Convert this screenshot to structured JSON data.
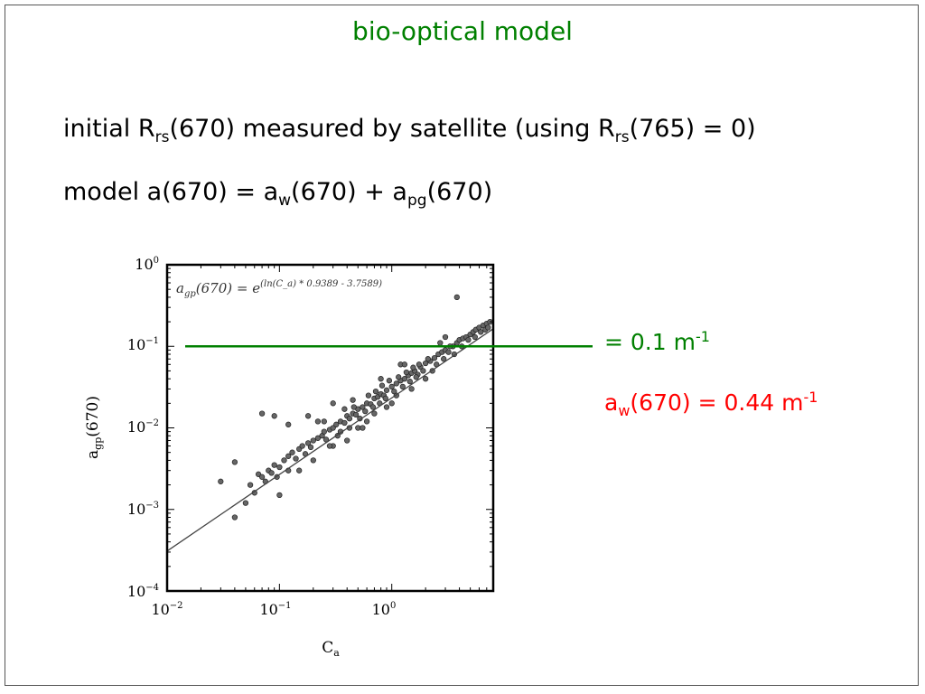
{
  "slide": {
    "title": "bio-optical model",
    "line1": {
      "a": "initial R",
      "sub1": "rs",
      "b": "(670) measured by satellite (using R",
      "sub2": "rs",
      "c": "(765) = 0)"
    },
    "line2": {
      "a": "model a(670) = a",
      "sub1": "w",
      "b": "(670) + a",
      "sub2": "pg",
      "c": "(670)"
    },
    "threshold_label": {
      "text": "= 0.1 m",
      "sup": "-1"
    },
    "aw_label": {
      "a": "a",
      "sub": "w",
      "b": "(670) = 0.44 m",
      "sup": "-1"
    }
  },
  "colors": {
    "title": "#008000",
    "threshold_line": "#008000",
    "aw_label": "#ff0000",
    "points_fill": "#666666",
    "points_stroke": "#222222"
  },
  "chart_data": {
    "type": "scatter",
    "x_scale": "log",
    "y_scale": "log",
    "xlim": [
      0.01,
      8
    ],
    "ylim": [
      0.0001,
      1
    ],
    "xlabel": "C_a",
    "ylabel": "a_gp(670)",
    "x_ticks": [
      "10^-2",
      "10^-1",
      "10^0"
    ],
    "y_ticks": [
      "10^-4",
      "10^-3",
      "10^-2",
      "10^-1",
      "10^0"
    ],
    "equation": {
      "lhs": "a",
      "lhs_sub": "gp",
      "lhs_rest": "(670) = e",
      "exponent": "(ln(C_a) * 0.9389 - 3.7589)"
    },
    "fit": {
      "slope": 0.9389,
      "intercept": -3.7589
    },
    "threshold_y": 0.1,
    "points": [
      [
        0.03,
        0.0022
      ],
      [
        0.04,
        0.0038
      ],
      [
        0.04,
        0.0008
      ],
      [
        0.05,
        0.0012
      ],
      [
        0.055,
        0.002
      ],
      [
        0.06,
        0.0016
      ],
      [
        0.065,
        0.0027
      ],
      [
        0.07,
        0.0025
      ],
      [
        0.075,
        0.0022
      ],
      [
        0.08,
        0.003
      ],
      [
        0.085,
        0.0028
      ],
      [
        0.09,
        0.0035
      ],
      [
        0.095,
        0.0025
      ],
      [
        0.1,
        0.0033
      ],
      [
        0.1,
        0.0015
      ],
      [
        0.11,
        0.004
      ],
      [
        0.12,
        0.0045
      ],
      [
        0.12,
        0.003
      ],
      [
        0.13,
        0.005
      ],
      [
        0.14,
        0.0042
      ],
      [
        0.15,
        0.0055
      ],
      [
        0.16,
        0.006
      ],
      [
        0.17,
        0.0048
      ],
      [
        0.18,
        0.0065
      ],
      [
        0.19,
        0.0058
      ],
      [
        0.2,
        0.007
      ],
      [
        0.2,
        0.004
      ],
      [
        0.22,
        0.0075
      ],
      [
        0.24,
        0.008
      ],
      [
        0.25,
        0.009
      ],
      [
        0.26,
        0.0072
      ],
      [
        0.28,
        0.0095
      ],
      [
        0.3,
        0.01
      ],
      [
        0.3,
        0.006
      ],
      [
        0.32,
        0.011
      ],
      [
        0.35,
        0.012
      ],
      [
        0.38,
        0.0115
      ],
      [
        0.4,
        0.014
      ],
      [
        0.42,
        0.013
      ],
      [
        0.45,
        0.015
      ],
      [
        0.48,
        0.0145
      ],
      [
        0.5,
        0.017
      ],
      [
        0.5,
        0.01
      ],
      [
        0.55,
        0.018
      ],
      [
        0.6,
        0.02
      ],
      [
        0.65,
        0.0195
      ],
      [
        0.7,
        0.023
      ],
      [
        0.75,
        0.024
      ],
      [
        0.8,
        0.026
      ],
      [
        0.85,
        0.025
      ],
      [
        0.9,
        0.029
      ],
      [
        1.0,
        0.032
      ],
      [
        1.0,
        0.02
      ],
      [
        1.1,
        0.035
      ],
      [
        1.2,
        0.038
      ],
      [
        1.3,
        0.04
      ],
      [
        1.4,
        0.044
      ],
      [
        1.5,
        0.047
      ],
      [
        1.6,
        0.05
      ],
      [
        1.8,
        0.056
      ],
      [
        2.0,
        0.062
      ],
      [
        2.2,
        0.066
      ],
      [
        2.4,
        0.072
      ],
      [
        2.6,
        0.08
      ],
      [
        2.8,
        0.085
      ],
      [
        3.0,
        0.09
      ],
      [
        3.2,
        0.085
      ],
      [
        3.5,
        0.1
      ],
      [
        3.8,
        0.11
      ],
      [
        4.0,
        0.12
      ],
      [
        4.3,
        0.125
      ],
      [
        4.6,
        0.13
      ],
      [
        5.0,
        0.14
      ],
      [
        5.3,
        0.15
      ],
      [
        5.6,
        0.16
      ],
      [
        6.0,
        0.17
      ],
      [
        6.5,
        0.18
      ],
      [
        7.0,
        0.19
      ],
      [
        7.5,
        0.2
      ],
      [
        0.07,
        0.015
      ],
      [
        0.09,
        0.014
      ],
      [
        0.12,
        0.011
      ],
      [
        0.15,
        0.003
      ],
      [
        0.18,
        0.014
      ],
      [
        0.22,
        0.012
      ],
      [
        0.3,
        0.02
      ],
      [
        0.4,
        0.007
      ],
      [
        0.6,
        0.012
      ],
      [
        0.8,
        0.04
      ],
      [
        1.2,
        0.06
      ],
      [
        1.5,
        0.03
      ],
      [
        2.0,
        0.04
      ],
      [
        3.0,
        0.13
      ],
      [
        3.8,
        0.4
      ],
      [
        0.35,
        0.009
      ],
      [
        0.45,
        0.022
      ],
      [
        0.55,
        0.01
      ],
      [
        0.7,
        0.015
      ],
      [
        0.9,
        0.018
      ],
      [
        1.1,
        0.025
      ],
      [
        1.3,
        0.06
      ],
      [
        1.7,
        0.045
      ],
      [
        2.3,
        0.05
      ],
      [
        2.7,
        0.11
      ],
      [
        0.25,
        0.012
      ],
      [
        0.28,
        0.006
      ],
      [
        0.33,
        0.008
      ],
      [
        0.38,
        0.017
      ],
      [
        0.42,
        0.01
      ],
      [
        0.46,
        0.018
      ],
      [
        0.52,
        0.013
      ],
      [
        0.58,
        0.016
      ],
      [
        0.62,
        0.025
      ],
      [
        0.68,
        0.018
      ],
      [
        0.72,
        0.028
      ],
      [
        0.78,
        0.02
      ],
      [
        0.82,
        0.033
      ],
      [
        0.88,
        0.023
      ],
      [
        0.95,
        0.038
      ],
      [
        1.05,
        0.028
      ],
      [
        1.15,
        0.042
      ],
      [
        1.25,
        0.032
      ],
      [
        1.35,
        0.048
      ],
      [
        1.45,
        0.037
      ],
      [
        1.55,
        0.055
      ],
      [
        1.65,
        0.042
      ],
      [
        1.75,
        0.06
      ],
      [
        1.9,
        0.05
      ],
      [
        2.1,
        0.07
      ],
      [
        2.5,
        0.06
      ],
      [
        2.9,
        0.07
      ],
      [
        3.3,
        0.1
      ],
      [
        3.6,
        0.08
      ],
      [
        4.2,
        0.1
      ],
      [
        4.8,
        0.12
      ],
      [
        5.5,
        0.13
      ],
      [
        6.2,
        0.15
      ],
      [
        6.8,
        0.16
      ],
      [
        7.2,
        0.17
      ]
    ]
  }
}
